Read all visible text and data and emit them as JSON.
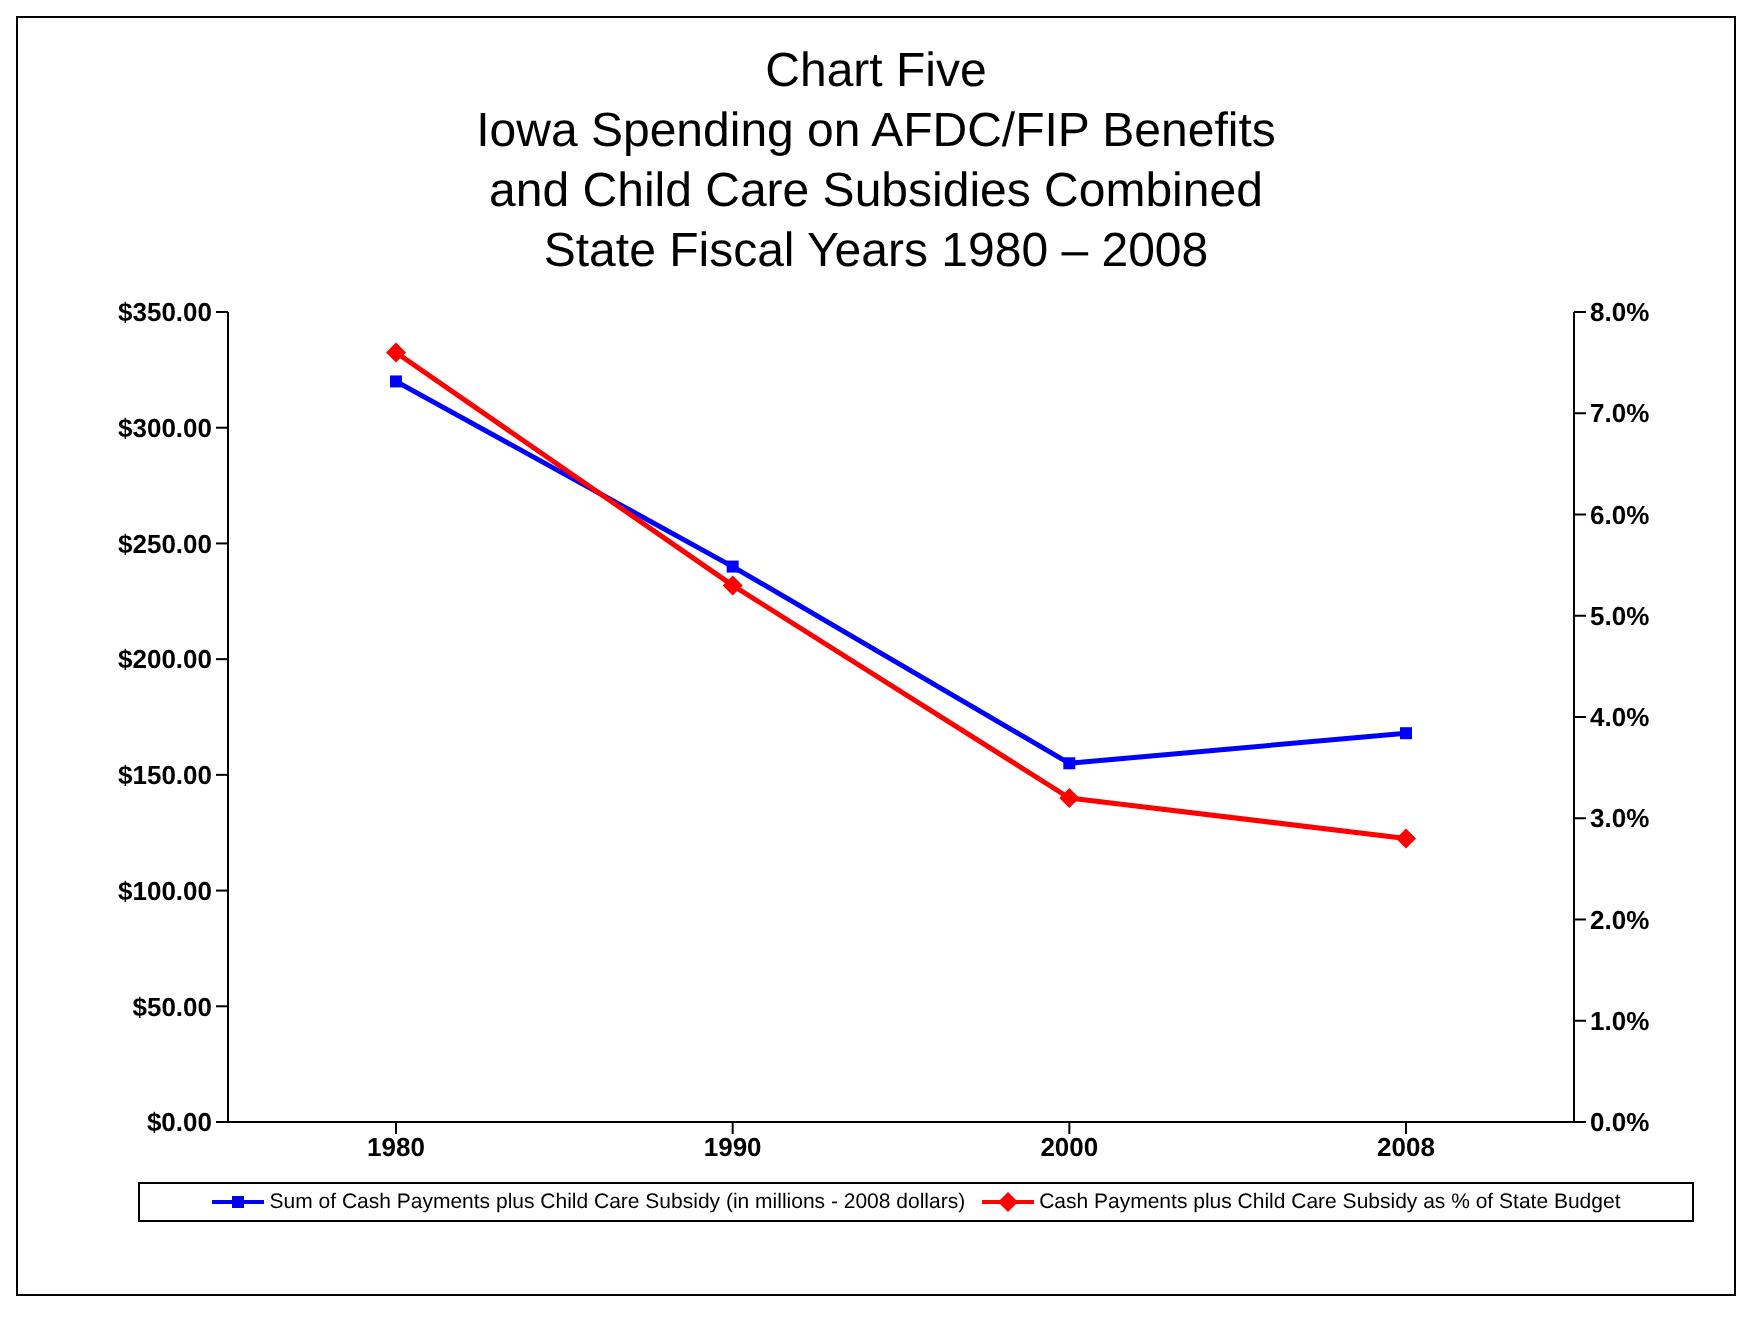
{
  "chart_data": {
    "type": "line",
    "title": "Chart Five\nIowa Spending on AFDC/FIP Benefits\nand Child Care Subsidies Combined\nState Fiscal Years 1980 – 2008",
    "categories": [
      "1980",
      "1990",
      "2000",
      "2008"
    ],
    "series": [
      {
        "name": "Sum of Cash Payments plus Child Care Subsidy (in millions - 2008 dollars)",
        "color": "#0000ff",
        "values": [
          320,
          240,
          155,
          168
        ],
        "marker": "square"
      },
      {
        "name": "Cash Payments plus Child Care Subsidy as % of State Budget",
        "color": "#ff0000",
        "values": [
          7.6,
          5.3,
          3.2,
          2.8
        ],
        "axis": "y2",
        "marker": "diamond"
      }
    ],
    "ylim": [
      0,
      350
    ],
    "yticks": [
      {
        "value": 0,
        "label": "$0.00"
      },
      {
        "value": 50,
        "label": "$50.00"
      },
      {
        "value": 100,
        "label": "$100.00"
      },
      {
        "value": 150,
        "label": "$150.00"
      },
      {
        "value": 200,
        "label": "$200.00"
      },
      {
        "value": 250,
        "label": "$250.00"
      },
      {
        "value": 300,
        "label": "$300.00"
      },
      {
        "value": 350,
        "label": "$350.00"
      }
    ],
    "y2lim": [
      0,
      8
    ],
    "y2ticks": [
      {
        "value": 0,
        "label": "0.0%"
      },
      {
        "value": 1,
        "label": "1.0%"
      },
      {
        "value": 2,
        "label": "2.0%"
      },
      {
        "value": 3,
        "label": "3.0%"
      },
      {
        "value": 4,
        "label": "4.0%"
      },
      {
        "value": 5,
        "label": "5.0%"
      },
      {
        "value": 6,
        "label": "6.0%"
      },
      {
        "value": 7,
        "label": "7.0%"
      },
      {
        "value": 8,
        "label": "8.0%"
      }
    ],
    "grid": false,
    "legend": "bottom",
    "line_style": "solid"
  }
}
